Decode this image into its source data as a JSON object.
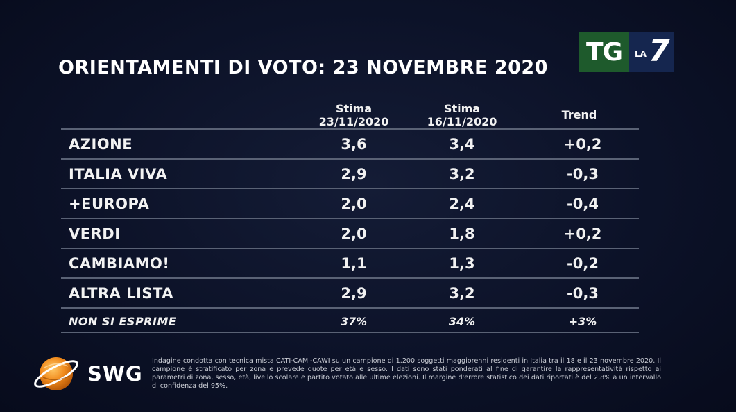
{
  "title": "ORIENTAMENTI DI VOTO: 23 NOVEMBRE 2020",
  "logo": {
    "tg": "TG",
    "la": "LA",
    "seven": "7"
  },
  "columns": {
    "col1_line1": "Stima",
    "col1_line2": "23/11/2020",
    "col2_line1": "Stima",
    "col2_line2": "16/11/2020",
    "col3": "Trend"
  },
  "rows": [
    {
      "name": "AZIONE",
      "est1": "3,6",
      "est2": "3,4",
      "trend": "+0,2"
    },
    {
      "name": "ITALIA VIVA",
      "est1": "2,9",
      "est2": "3,2",
      "trend": "-0,3"
    },
    {
      "name": "+EUROPA",
      "est1": "2,0",
      "est2": "2,4",
      "trend": "-0,4"
    },
    {
      "name": "VERDI",
      "est1": "2,0",
      "est2": "1,8",
      "trend": "+0,2"
    },
    {
      "name": "CAMBIAMO!",
      "est1": "1,1",
      "est2": "1,3",
      "trend": "-0,2"
    },
    {
      "name": "ALTRA LISTA",
      "est1": "2,9",
      "est2": "3,2",
      "trend": "-0,3"
    },
    {
      "name": "NON SI ESPRIME",
      "est1": "37%",
      "est2": "34%",
      "trend": "+3%"
    }
  ],
  "swg": {
    "label": "SWG"
  },
  "footnote": "Indagine condotta con tecnica mista CATI-CAMI-CAWI su un campione di 1.200 soggetti maggiorenni residenti in Italia tra il 18 e il 23 novembre 2020. Il campione è stratificato per zona e prevede quote per età e sesso. I dati sono stati ponderati al fine di garantire la rappresentatività rispetto ai parametri di zona, sesso, età, livello scolare e partito votato alle ultime elezioni. Il margine d'errore statistico dei dati riportati è del 2,8% a un intervallo di confidenza del 95%.",
  "colors": {
    "background": "#0c1228",
    "divider": "#5a6275",
    "tg_green": "#1e5a2c",
    "la7_blue": "#15264f",
    "swg_orange": "#f08a1c"
  }
}
